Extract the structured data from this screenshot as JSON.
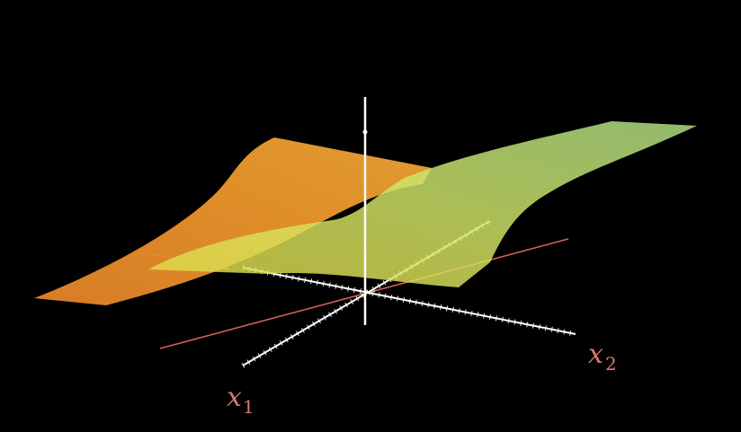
{
  "figure": {
    "axis_labels": {
      "x1": {
        "main": "x",
        "sub": "1"
      },
      "x2": {
        "main": "x",
        "sub": "2"
      }
    },
    "colors": {
      "background": "#000000",
      "axis": "#ffffff",
      "decision_line": "#e0645a",
      "label": "#d67a72",
      "orange_surface": "#f0922a",
      "green_surface": "#c8f07a"
    },
    "surfaces": [
      {
        "name": "orange-sigmoid-surface",
        "color": "orange"
      },
      {
        "name": "green-sigmoid-surface",
        "color": "green"
      }
    ]
  }
}
